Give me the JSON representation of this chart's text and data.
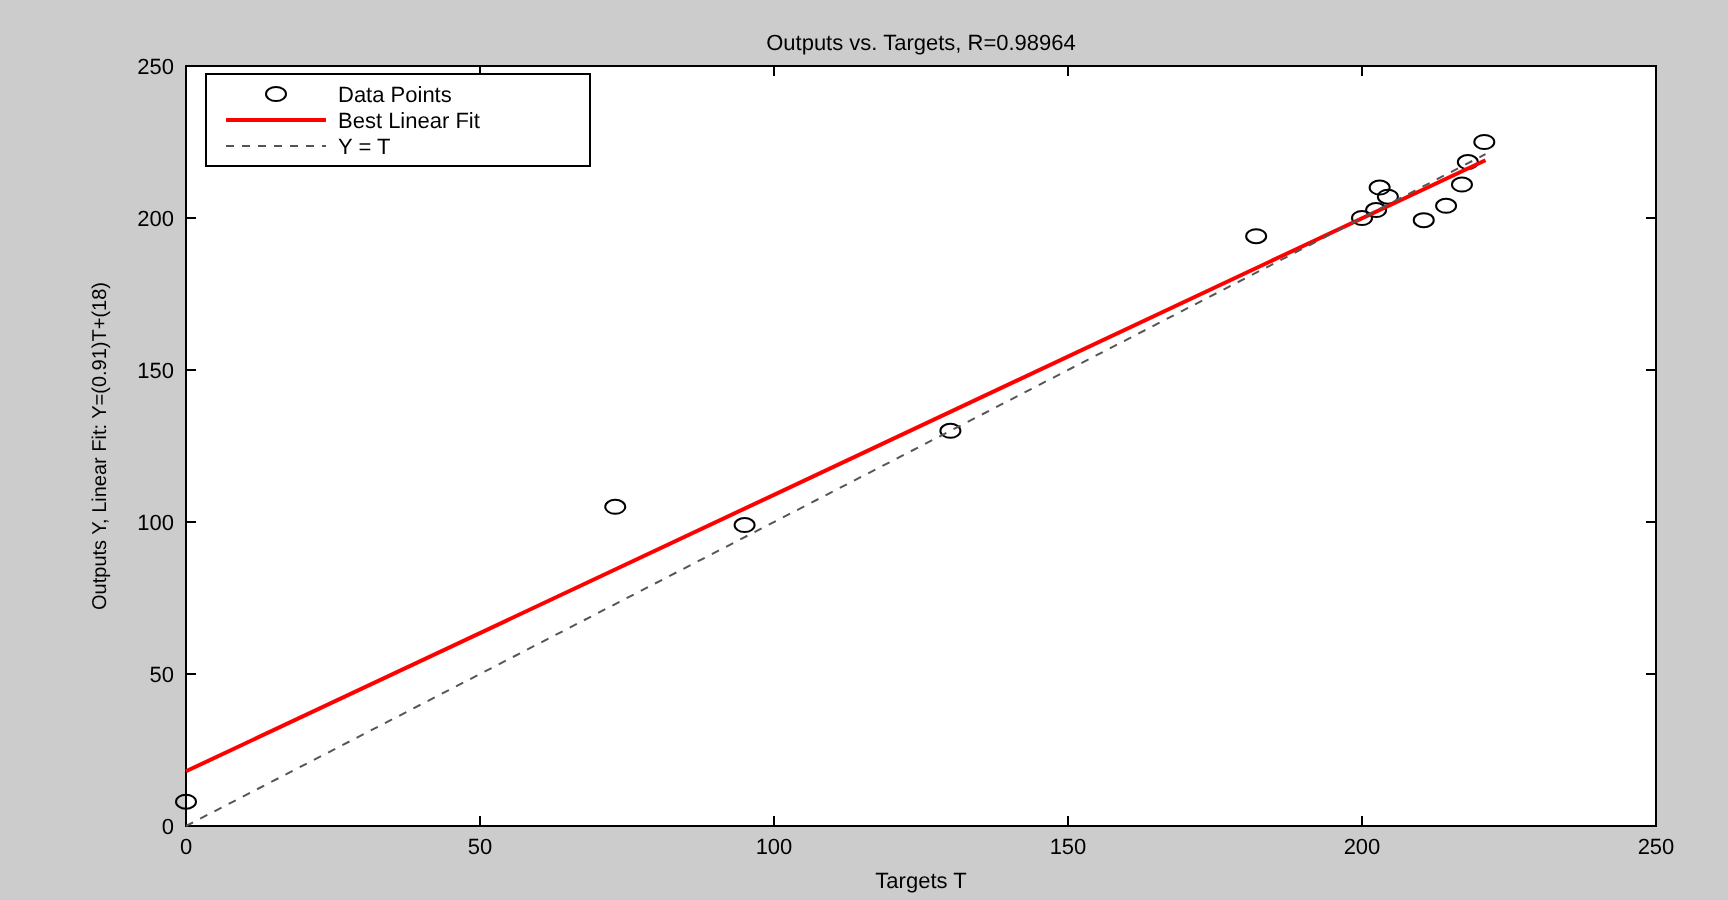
{
  "chart_data": {
    "type": "scatter",
    "title": "Outputs vs. Targets, R=0.98964",
    "xlabel": "Targets T",
    "ylabel": "Outputs Y,  Linear Fit: Y=(0.91)T+(18)",
    "xlim": [
      0,
      250
    ],
    "ylim": [
      0,
      250
    ],
    "xticks": [
      0,
      50,
      100,
      150,
      200,
      250
    ],
    "yticks": [
      0,
      50,
      100,
      150,
      200,
      250
    ],
    "grid": false,
    "legend": "top left",
    "series": [
      {
        "name": "Data Points",
        "marker": "circle",
        "color": "#000000",
        "x": [
          0,
          73,
          95,
          130,
          182,
          200,
          202.4,
          203,
          204.4,
          210.5,
          214.3,
          217,
          218,
          220.8
        ],
        "values": [
          8,
          105,
          99,
          130,
          194,
          200,
          202.6,
          210,
          207,
          199.3,
          204,
          211,
          218.4,
          225
        ]
      },
      {
        "name": "Best Linear Fit",
        "type": "line",
        "marker": "none",
        "line_style": "solid",
        "color": "#ff0000",
        "x": [
          0,
          221
        ],
        "values": [
          18,
          219
        ]
      },
      {
        "name": "Y = T",
        "type": "line",
        "marker": "none",
        "line_style": "dashed",
        "color": "#555555",
        "x": [
          0,
          221
        ],
        "values": [
          0,
          221
        ]
      }
    ]
  }
}
